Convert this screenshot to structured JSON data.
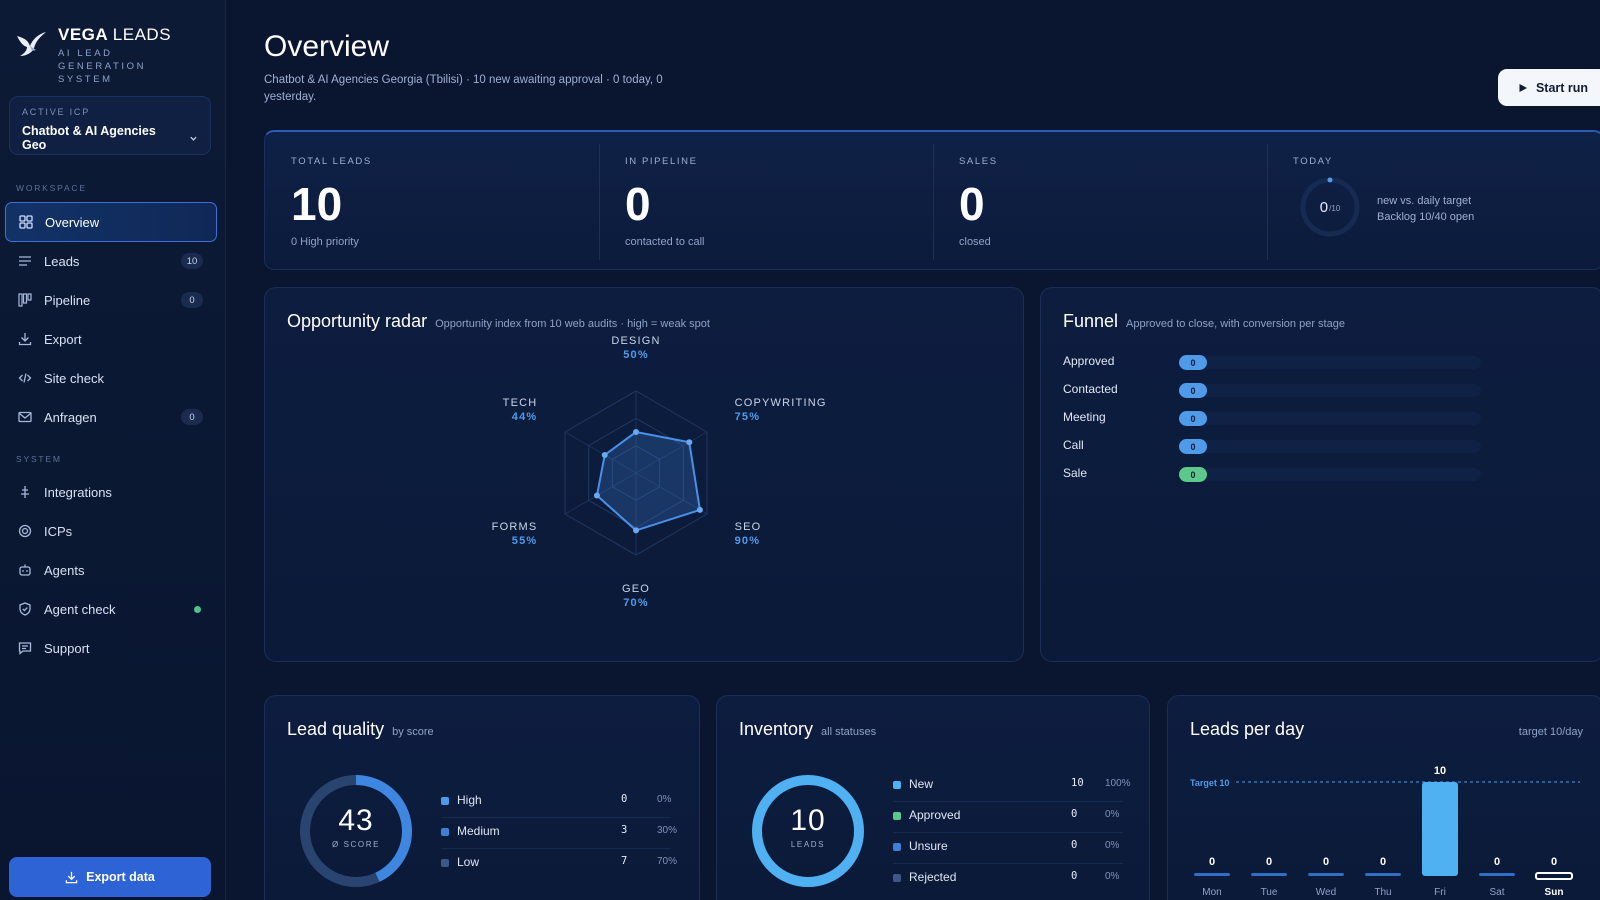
{
  "brand": {
    "name_bold": "VEGA",
    "name_light": "LEADS",
    "tagline": "AI LEAD GENERATION SYSTEM"
  },
  "icp": {
    "label": "ACTIVE ICP",
    "value": "Chatbot & AI Agencies Geo"
  },
  "sidebar": {
    "workspace_label": "WORKSPACE",
    "system_label": "SYSTEM",
    "workspace_items": [
      {
        "label": "Overview",
        "icon": "grid-icon",
        "badge": null,
        "active": true
      },
      {
        "label": "Leads",
        "icon": "list-icon",
        "badge": "10"
      },
      {
        "label": "Pipeline",
        "icon": "kanban-icon",
        "badge": "0"
      },
      {
        "label": "Export",
        "icon": "download-icon",
        "badge": null
      },
      {
        "label": "Site check",
        "icon": "code-icon",
        "badge": null
      },
      {
        "label": "Anfragen",
        "icon": "mail-icon",
        "badge": "0"
      }
    ],
    "system_items": [
      {
        "label": "Integrations",
        "icon": "plug-icon"
      },
      {
        "label": "ICPs",
        "icon": "target-icon"
      },
      {
        "label": "Agents",
        "icon": "bot-icon"
      },
      {
        "label": "Agent check",
        "icon": "shield-icon",
        "status": "online"
      },
      {
        "label": "Support",
        "icon": "message-icon"
      }
    ],
    "export_button": "Export data"
  },
  "header": {
    "title": "Overview",
    "subtitle": "Chatbot & AI Agencies Georgia (Tbilisi) · 10 new awaiting approval · 0 today, 0 yesterday.",
    "start_button": "Start run"
  },
  "stats": {
    "total": {
      "label": "TOTAL LEADS",
      "value": "10",
      "note": "0 High priority"
    },
    "pipeline": {
      "label": "IN PIPELINE",
      "value": "0",
      "note": "contacted to call"
    },
    "sales": {
      "label": "SALES",
      "value": "0",
      "note": "closed"
    },
    "today": {
      "label": "TODAY",
      "value": "0",
      "target": "/10",
      "line1": "new vs. daily target",
      "line2": "Backlog 10/40 open",
      "progress": 0
    }
  },
  "radar": {
    "title": "Opportunity radar",
    "subtitle": "Opportunity index from 10 web audits · high = weak spot",
    "axes": [
      {
        "name": "DESIGN",
        "pct": "50%",
        "value": 50
      },
      {
        "name": "COPYWRITING",
        "pct": "75%",
        "value": 75
      },
      {
        "name": "SEO",
        "pct": "90%",
        "value": 90
      },
      {
        "name": "GEO",
        "pct": "70%",
        "value": 70
      },
      {
        "name": "FORMS",
        "pct": "55%",
        "value": 55
      },
      {
        "name": "TECH",
        "pct": "44%",
        "value": 44
      }
    ]
  },
  "funnel": {
    "title": "Funnel",
    "subtitle": "Approved to close, with conversion per stage",
    "stages": [
      {
        "label": "Approved",
        "value": "0",
        "color": "#4f9bea"
      },
      {
        "label": "Contacted",
        "value": "0",
        "color": "#4f9bea"
      },
      {
        "label": "Meeting",
        "value": "0",
        "color": "#4f9bea"
      },
      {
        "label": "Call",
        "value": "0",
        "color": "#4f9bea"
      },
      {
        "label": "Sale",
        "value": "0",
        "color": "#5cc98a"
      }
    ]
  },
  "lead_quality": {
    "title": "Lead quality",
    "subtitle": "by score",
    "score": "43",
    "score_caption": "Ø SCORE",
    "score_fraction": 0.43,
    "rows": [
      {
        "label": "High",
        "count": "0",
        "pct": "0%",
        "color": "#4f9bea"
      },
      {
        "label": "Medium",
        "count": "3",
        "pct": "30%",
        "color": "#3f7fd6"
      },
      {
        "label": "Low",
        "count": "7",
        "pct": "70%",
        "color": "#3c5788"
      }
    ]
  },
  "inventory": {
    "title": "Inventory",
    "subtitle": "all statuses",
    "total": "10",
    "caption": "LEADS",
    "rows": [
      {
        "label": "New",
        "count": "10",
        "pct": "100%",
        "color": "#4fb0f2"
      },
      {
        "label": "Approved",
        "count": "0",
        "pct": "0%",
        "color": "#5cc98a"
      },
      {
        "label": "Unsure",
        "count": "0",
        "pct": "0%",
        "color": "#3f7fd6"
      },
      {
        "label": "Rejected",
        "count": "0",
        "pct": "0%",
        "color": "#3c5788"
      }
    ]
  },
  "leads_per_day": {
    "title": "Leads per day",
    "target_note": "target 10/day",
    "target_label": "Target 10"
  },
  "chart_data": {
    "type": "bar",
    "categories": [
      "Mon",
      "Tue",
      "Wed",
      "Thu",
      "Fri",
      "Sat",
      "Sun"
    ],
    "values": [
      0,
      0,
      0,
      0,
      10,
      0,
      0
    ],
    "target": 10,
    "highlight": "Sun",
    "ylim": [
      0,
      10
    ]
  }
}
